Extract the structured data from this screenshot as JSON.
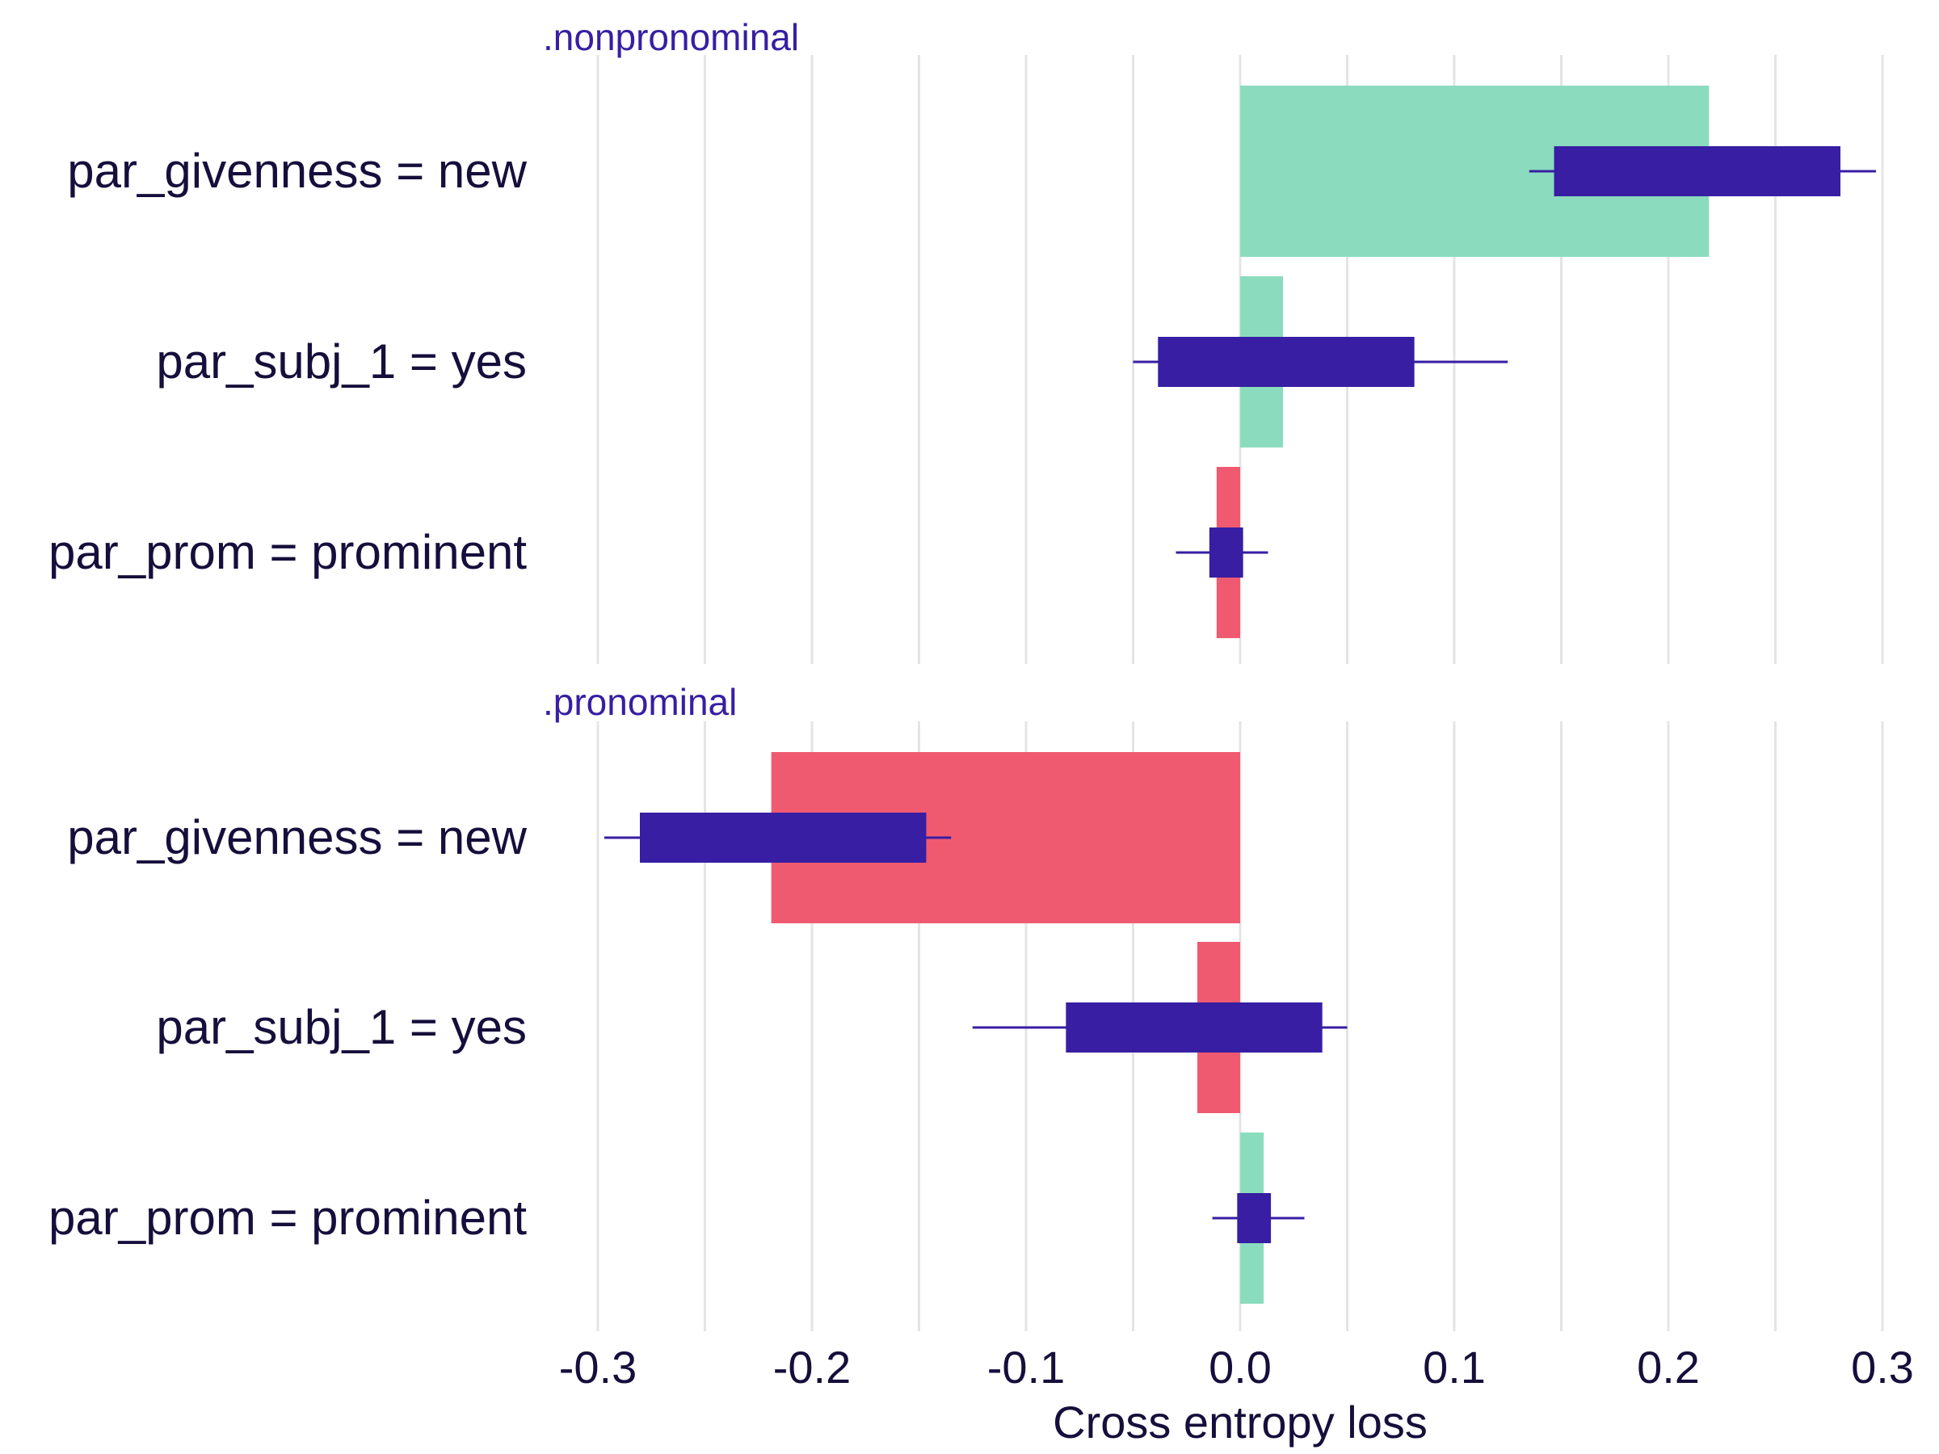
{
  "chart_data": {
    "type": "bar",
    "xlabel": "Cross entropy loss",
    "xlim": [
      -0.3,
      0.3
    ],
    "xticks": [
      "-0.3",
      "-0.2",
      "-0.1",
      "0.0",
      "0.1",
      "0.2",
      "0.3"
    ],
    "grid": true,
    "colors": {
      "positive": "#8bdcbe",
      "negative": "#f05a71",
      "box": "#371EA3",
      "text": "#160e3b"
    },
    "facets": [
      {
        "title": ".nonpronominal",
        "categories": [
          "par_givenness = new",
          "par_subj_1 = yes",
          "par_prom = prominent"
        ],
        "values": [
          0.219,
          0.02,
          -0.011
        ],
        "boxes": [
          {
            "whisker_min": 0.135,
            "q1": 0.147,
            "q3": 0.28,
            "whisker_max": 0.297
          },
          {
            "whisker_min": -0.05,
            "q1": -0.038,
            "q3": 0.081,
            "whisker_max": 0.125
          },
          {
            "whisker_min": -0.03,
            "q1": -0.014,
            "q3": 0.001,
            "whisker_max": 0.013
          }
        ]
      },
      {
        "title": ".pronominal",
        "categories": [
          "par_givenness = new",
          "par_subj_1 = yes",
          "par_prom = prominent"
        ],
        "values": [
          -0.219,
          -0.02,
          0.011
        ],
        "boxes": [
          {
            "whisker_min": -0.297,
            "q1": -0.28,
            "q3": -0.147,
            "whisker_max": -0.135
          },
          {
            "whisker_min": -0.125,
            "q1": -0.081,
            "q3": 0.038,
            "whisker_max": 0.05
          },
          {
            "whisker_min": -0.013,
            "q1": -0.001,
            "q3": 0.014,
            "whisker_max": 0.03
          }
        ]
      }
    ]
  }
}
